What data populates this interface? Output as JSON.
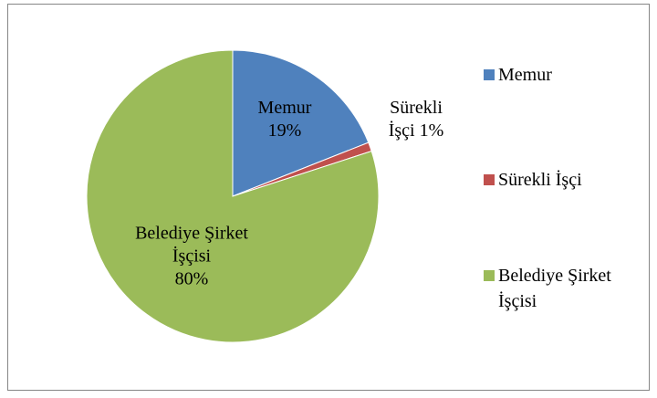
{
  "chart_data": {
    "type": "pie",
    "categories": [
      "Memur",
      "Sürekli İşçi",
      "Belediye Şirket İşçisi"
    ],
    "values": [
      19,
      1,
      80
    ],
    "value_labels": [
      "19%",
      "1%",
      "80%"
    ],
    "colors": [
      "#4f81bd",
      "#c0504d",
      "#9bbb59"
    ],
    "legend": "right"
  }
}
